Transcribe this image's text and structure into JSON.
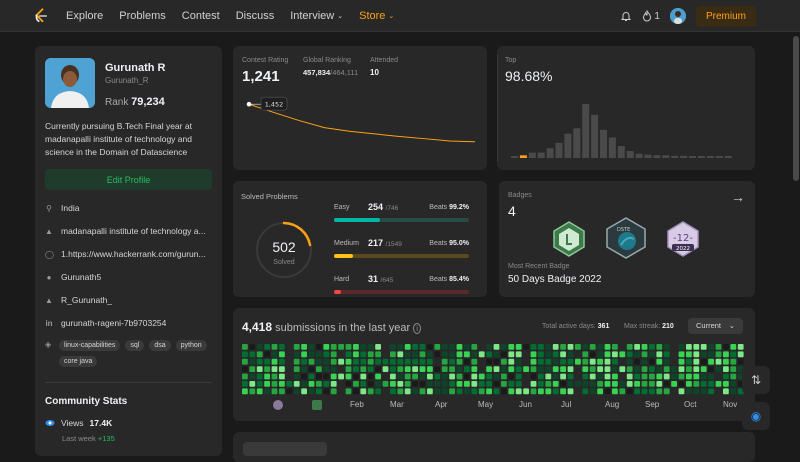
{
  "nav": {
    "items": [
      "Explore",
      "Problems",
      "Contest",
      "Discuss",
      "Interview",
      "Store"
    ],
    "streak": "1",
    "premium": "Premium"
  },
  "profile": {
    "name": "Gurunath R",
    "username": "Gurunath_R",
    "rank_label": "Rank",
    "rank": "79,234",
    "bio": "Currently pursuing B.Tech Final year at madanapalli institute of technology and science in the Domain of Datascience",
    "edit": "Edit Profile",
    "location": "India",
    "school": "madanapalli institute of technology a...",
    "website": "1.https://www.hackerrank.com/gurun...",
    "github": "Gurunath5",
    "twitter": "R_Gurunath_",
    "linkedin": "gurunath-rageni-7b9703254",
    "tags": [
      "linux-capabilities",
      "sql",
      "dsa",
      "python",
      "core java"
    ],
    "community_title": "Community Stats",
    "views_label": "Views",
    "views": "17.4K",
    "last_week_label": "Last week",
    "last_week": "+135"
  },
  "rating": {
    "label": "Contest Rating",
    "value": "1,241",
    "global_label": "Global Ranking",
    "global": "457,834",
    "global_total": "/464,111",
    "attended_label": "Attended",
    "attended": "10",
    "tooltip": "1,452",
    "line_points": [
      1452,
      1405,
      1360,
      1320,
      1300,
      1285,
      1270,
      1258,
      1245,
      1241
    ]
  },
  "top": {
    "label": "Top",
    "value": "98.68%",
    "histogram": [
      0.03,
      0.05,
      0.1,
      0.1,
      0.18,
      0.28,
      0.45,
      0.55,
      1.0,
      0.8,
      0.52,
      0.38,
      0.22,
      0.13,
      0.08,
      0.06,
      0.05,
      0.05,
      0.04,
      0.04,
      0.03,
      0.03,
      0.03,
      0.02,
      0.02
    ],
    "highlight_index": 1
  },
  "solved": {
    "title": "Solved Problems",
    "total": "502",
    "total_label": "Solved",
    "rows": [
      {
        "name": "Easy",
        "count": "254",
        "total": "/746",
        "beats_label": "Beats",
        "beats": "99.2%",
        "color": "#00b8a3",
        "track": "#2a4a45",
        "fill": 0.34
      },
      {
        "name": "Medium",
        "count": "217",
        "total": "/1549",
        "beats_label": "Beats",
        "beats": "95.0%",
        "color": "#ffc01e",
        "track": "#5a4a1e",
        "fill": 0.14
      },
      {
        "name": "Hard",
        "count": "31",
        "total": "/645",
        "beats_label": "Beats",
        "beats": "85.4%",
        "color": "#ef4743",
        "track": "#5a2a2a",
        "fill": 0.05
      }
    ]
  },
  "badges": {
    "title": "Badges",
    "count": "4",
    "recent_label": "Most Recent Badge",
    "recent": "50 Days Badge 2022",
    "badge_year": "2022",
    "badge_num": "-12-",
    "badge_text": "DSTE"
  },
  "submissions": {
    "count": "4,418",
    "label": "submissions in the last year",
    "active_label": "Total active days:",
    "active": "361",
    "streak_label": "Max streak:",
    "streak": "210",
    "select": "Current",
    "months": [
      "Feb",
      "Mar",
      "Apr",
      "May",
      "Jun",
      "Jul",
      "Aug",
      "Sep",
      "Oct",
      "Nov"
    ]
  }
}
